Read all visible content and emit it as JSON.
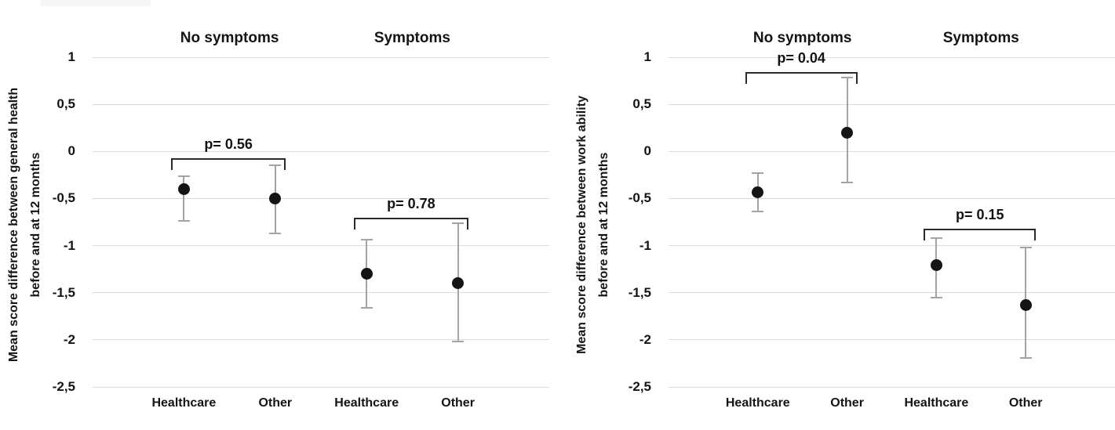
{
  "figure": {
    "background": "#ffffff",
    "colors": {
      "marker": "#151515",
      "error_bar": "#a3a3a3",
      "bracket": "#2b2b2b",
      "gridline": "#dcdcdc",
      "text": "#141414"
    }
  },
  "chart_data": [
    {
      "type": "scatter",
      "title": "",
      "ylabel_lines": [
        "Mean score difference between general health",
        "before and at 12 months"
      ],
      "xlabel": "",
      "ylim": [
        -2.5,
        1
      ],
      "grid": true,
      "legend": "none",
      "decimal_separator": ",",
      "yticks": [
        {
          "value": 1,
          "label": "1"
        },
        {
          "value": 0.5,
          "label": "0,5"
        },
        {
          "value": 0,
          "label": "0"
        },
        {
          "value": -0.5,
          "label": "-0,5"
        },
        {
          "value": -1,
          "label": "-1"
        },
        {
          "value": -1.5,
          "label": "-1,5"
        },
        {
          "value": -2,
          "label": "-2"
        },
        {
          "value": -2.5,
          "label": "-2,5"
        }
      ],
      "groups": [
        {
          "label": "No symptoms",
          "p_value_label": "p= 0.56",
          "bracket_top_value": -0.07,
          "points": [
            {
              "category": "Healthcare",
              "mean": -0.4,
              "ci_low": -0.74,
              "ci_high": -0.26
            },
            {
              "category": "Other",
              "mean": -0.5,
              "ci_low": -0.87,
              "ci_high": -0.15
            }
          ]
        },
        {
          "label": "Symptoms",
          "p_value_label": "p= 0.78",
          "bracket_top_value": -0.7,
          "points": [
            {
              "category": "Healthcare",
              "mean": -1.3,
              "ci_low": -1.66,
              "ci_high": -0.94
            },
            {
              "category": "Other",
              "mean": -1.4,
              "ci_low": -2.02,
              "ci_high": -0.76
            }
          ]
        }
      ]
    },
    {
      "type": "scatter",
      "title": "",
      "ylabel_lines": [
        "Mean score difference between work ability",
        "before and at 12 months"
      ],
      "xlabel": "",
      "ylim": [
        -2.5,
        1
      ],
      "grid": true,
      "legend": "none",
      "decimal_separator": ",",
      "yticks": [
        {
          "value": 1,
          "label": "1"
        },
        {
          "value": 0.5,
          "label": "0,5"
        },
        {
          "value": 0,
          "label": "0"
        },
        {
          "value": -0.5,
          "label": "-0,5"
        },
        {
          "value": -1,
          "label": "-1"
        },
        {
          "value": -1.5,
          "label": "-1,5"
        },
        {
          "value": -2,
          "label": "-2"
        },
        {
          "value": -2.5,
          "label": "-2,5"
        }
      ],
      "groups": [
        {
          "label": "No symptoms",
          "p_value_label": "p= 0.04",
          "bracket_top_value": 0.84,
          "points": [
            {
              "category": "Healthcare",
              "mean": -0.43,
              "ci_low": -0.64,
              "ci_high": -0.23
            },
            {
              "category": "Other",
              "mean": 0.2,
              "ci_low": -0.33,
              "ci_high": 0.78
            }
          ]
        },
        {
          "label": "Symptoms",
          "p_value_label": "p= 0.15",
          "bracket_top_value": -0.82,
          "points": [
            {
              "category": "Healthcare",
              "mean": -1.21,
              "ci_low": -1.55,
              "ci_high": -0.92
            },
            {
              "category": "Other",
              "mean": -1.63,
              "ci_low": -2.19,
              "ci_high": -1.02
            }
          ]
        }
      ]
    }
  ]
}
